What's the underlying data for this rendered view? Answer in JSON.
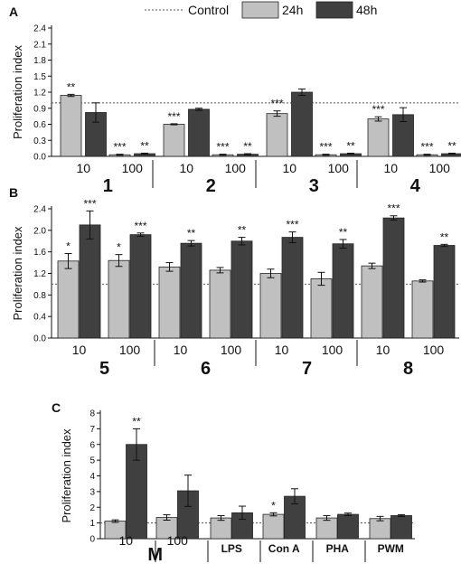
{
  "legend": {
    "items": [
      {
        "label": "Control",
        "kind": "line"
      },
      {
        "label": "24h",
        "kind": "box",
        "color": "#c0c0c0"
      },
      {
        "label": "48h",
        "kind": "box",
        "color": "#404040"
      }
    ]
  },
  "colors": {
    "s24": "#c0c0c0",
    "s48": "#404040",
    "control": "#555555"
  },
  "chart_data": [
    {
      "panel": "A",
      "type": "bar",
      "ylabel": "Proliferation index",
      "ylim": [
        0,
        2.4
      ],
      "yticks": [
        "0.0",
        "0.3",
        "0.6",
        "0.9",
        "1.2",
        "1.5",
        "1.8",
        "2.1",
        "2.4"
      ],
      "control": 1.0,
      "series_names": [
        "24h",
        "48h"
      ],
      "groups": [
        {
          "label": "1",
          "bars": [
            {
              "cat": "10",
              "v24": 1.14,
              "e24": 0.02,
              "s24": "**",
              "v48": 0.82,
              "e48": 0.18,
              "s48": ""
            },
            {
              "cat": "100",
              "v24": 0.03,
              "e24": 0.01,
              "s24": "***",
              "v48": 0.05,
              "e48": 0.01,
              "s48": "**"
            }
          ]
        },
        {
          "label": "2",
          "bars": [
            {
              "cat": "10",
              "v24": 0.6,
              "e24": 0.01,
              "s24": "***",
              "v48": 0.88,
              "e48": 0.02,
              "s48": ""
            },
            {
              "cat": "100",
              "v24": 0.03,
              "e24": 0.01,
              "s24": "***",
              "v48": 0.04,
              "e48": 0.01,
              "s48": "**"
            }
          ]
        },
        {
          "label": "3",
          "bars": [
            {
              "cat": "10",
              "v24": 0.8,
              "e24": 0.05,
              "s24": "***",
              "v48": 1.2,
              "e48": 0.06,
              "s48": ""
            },
            {
              "cat": "100",
              "v24": 0.03,
              "e24": 0.01,
              "s24": "***",
              "v48": 0.05,
              "e48": 0.01,
              "s48": "**"
            }
          ]
        },
        {
          "label": "4",
          "bars": [
            {
              "cat": "10",
              "v24": 0.7,
              "e24": 0.04,
              "s24": "***",
              "v48": 0.78,
              "e48": 0.13,
              "s48": ""
            },
            {
              "cat": "100",
              "v24": 0.03,
              "e24": 0.01,
              "s24": "***",
              "v48": 0.05,
              "e48": 0.01,
              "s48": "**"
            }
          ]
        }
      ]
    },
    {
      "panel": "B",
      "type": "bar",
      "ylabel": "Proliferation index",
      "ylim": [
        0,
        2.4
      ],
      "yticks": [
        "0.0",
        "0.4",
        "0.8",
        "1.2",
        "1.6",
        "2.0",
        "2.4"
      ],
      "control": 1.0,
      "series_names": [
        "24h",
        "48h"
      ],
      "groups": [
        {
          "label": "5",
          "bars": [
            {
              "cat": "10",
              "v24": 1.43,
              "e24": 0.14,
              "s24": "*",
              "v48": 2.1,
              "e48": 0.26,
              "s48": "***"
            },
            {
              "cat": "100",
              "v24": 1.44,
              "e24": 0.11,
              "s24": "*",
              "v48": 1.92,
              "e48": 0.03,
              "s48": "***"
            }
          ]
        },
        {
          "label": "6",
          "bars": [
            {
              "cat": "10",
              "v24": 1.32,
              "e24": 0.08,
              "s24": "",
              "v48": 1.76,
              "e48": 0.05,
              "s48": "**"
            },
            {
              "cat": "100",
              "v24": 1.26,
              "e24": 0.05,
              "s24": "",
              "v48": 1.8,
              "e48": 0.07,
              "s48": "**"
            }
          ]
        },
        {
          "label": "7",
          "bars": [
            {
              "cat": "10",
              "v24": 1.2,
              "e24": 0.08,
              "s24": "",
              "v48": 1.87,
              "e48": 0.1,
              "s48": "***"
            },
            {
              "cat": "100",
              "v24": 1.1,
              "e24": 0.12,
              "s24": "",
              "v48": 1.75,
              "e48": 0.08,
              "s48": "**"
            }
          ]
        },
        {
          "label": "8",
          "bars": [
            {
              "cat": "10",
              "v24": 1.34,
              "e24": 0.05,
              "s24": "",
              "v48": 2.23,
              "e48": 0.04,
              "s48": "***"
            },
            {
              "cat": "100",
              "v24": 1.06,
              "e24": 0.02,
              "s24": "",
              "v48": 1.72,
              "e48": 0.02,
              "s48": "**"
            }
          ]
        }
      ]
    },
    {
      "panel": "C",
      "type": "bar",
      "ylabel": "Proliferation index",
      "ylim": [
        0,
        8
      ],
      "yticks": [
        "0",
        "1",
        "2",
        "3",
        "4",
        "5",
        "6",
        "7",
        "8"
      ],
      "control": 1.0,
      "series_names": [
        "24h",
        "48h"
      ],
      "groups": [
        {
          "label": "M",
          "bars": [
            {
              "cat": "10",
              "v24": 1.12,
              "e24": 0.08,
              "s24": "",
              "v48": 6.0,
              "e48": 1.0,
              "s48": "**"
            },
            {
              "cat": "100",
              "v24": 1.35,
              "e24": 0.17,
              "s24": "",
              "v48": 3.05,
              "e48": 1.0,
              "s48": ""
            }
          ]
        },
        {
          "label": "LPS",
          "bars": [
            {
              "cat": "",
              "v24": 1.32,
              "e24": 0.15,
              "s24": "",
              "v48": 1.65,
              "e48": 0.42,
              "s48": ""
            }
          ]
        },
        {
          "label": "Con A",
          "bars": [
            {
              "cat": "",
              "v24": 1.55,
              "e24": 0.1,
              "s24": "*",
              "v48": 2.7,
              "e48": 0.48,
              "s48": ""
            }
          ]
        },
        {
          "label": "PHA",
          "bars": [
            {
              "cat": "",
              "v24": 1.32,
              "e24": 0.15,
              "s24": "",
              "v48": 1.55,
              "e48": 0.08,
              "s48": ""
            }
          ]
        },
        {
          "label": "PWM",
          "bars": [
            {
              "cat": "",
              "v24": 1.28,
              "e24": 0.14,
              "s24": "",
              "v48": 1.47,
              "e48": 0.06,
              "s48": ""
            }
          ]
        }
      ]
    }
  ]
}
